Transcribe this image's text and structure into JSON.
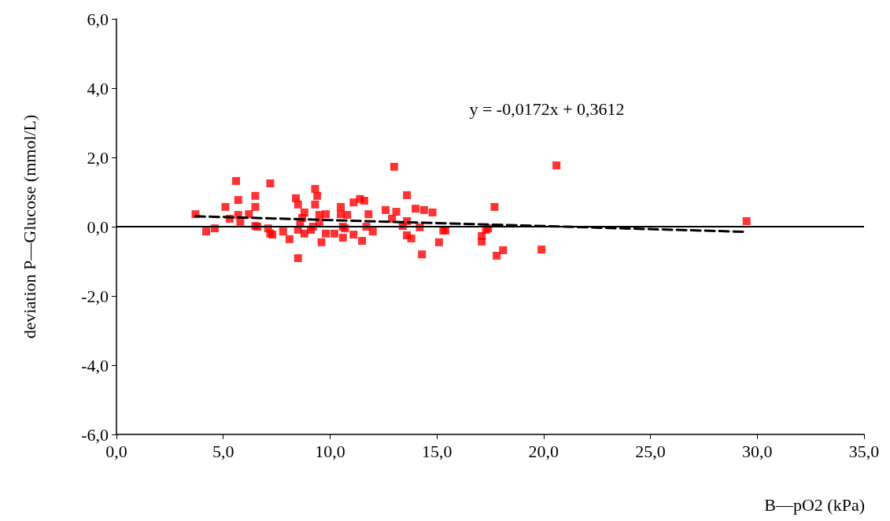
{
  "chart_data": {
    "type": "scatter",
    "xlabel": "B—pO2 (kPa)",
    "ylabel": "deviation P—Glucose (mmol/L)",
    "annotations": [
      "y = -0,0172x + 0,3612"
    ],
    "xlim": [
      0,
      35
    ],
    "ylim": [
      -6,
      6
    ],
    "xticks": [
      {
        "value": 0,
        "label": "0,0"
      },
      {
        "value": 5,
        "label": "5,0"
      },
      {
        "value": 10,
        "label": "10,0"
      },
      {
        "value": 15,
        "label": "15,0"
      },
      {
        "value": 20,
        "label": "20,0"
      },
      {
        "value": 25,
        "label": "25,0"
      },
      {
        "value": 30,
        "label": "30,0"
      },
      {
        "value": 35,
        "label": "35,0"
      }
    ],
    "yticks": [
      {
        "value": -6,
        "label": "-6,0"
      },
      {
        "value": -4,
        "label": "-4,0"
      },
      {
        "value": -2,
        "label": "-2,0"
      },
      {
        "value": 0,
        "label": "0,0"
      },
      {
        "value": 2,
        "label": "2,0"
      },
      {
        "value": 4,
        "label": "4,0"
      },
      {
        "value": 6,
        "label": "6,0"
      }
    ],
    "grid": false,
    "ref_lines": [
      {
        "axis": "y",
        "value": 0,
        "color": "#000000",
        "line_style": "solid"
      }
    ],
    "series": [
      {
        "color": "#ff0000",
        "marker": "square",
        "x": [
          3.7,
          4.2,
          4.6,
          5.6,
          5.1,
          5.7,
          5.3,
          5.7,
          5.8,
          6.2,
          6.5,
          6.5,
          6.5,
          6.6,
          7.2,
          7.1,
          7.2,
          7.3,
          7.8,
          8.1,
          8.4,
          8.5,
          8.5,
          8.6,
          8.7,
          8.5,
          8.8,
          8.8,
          9.1,
          9.3,
          9.4,
          9.3,
          9.2,
          9.5,
          9.8,
          9.5,
          9.8,
          9.6,
          10.2,
          10.5,
          10.5,
          10.8,
          10.6,
          10.7,
          10.6,
          11.1,
          11.1,
          11.4,
          11.6,
          11.5,
          11.8,
          11.7,
          12.0,
          13.0,
          12.6,
          13.1,
          12.9,
          13.6,
          14.0,
          14.4,
          14.8,
          13.6,
          13.4,
          14.2,
          13.6,
          13.8,
          14.3,
          15.3,
          15.4,
          15.1,
          17.7,
          17.4,
          17.3,
          17.1,
          17.1,
          18.1,
          17.8,
          19.9,
          20.6,
          29.5
        ],
        "values": [
          0.36,
          -0.14,
          -0.05,
          1.32,
          0.57,
          0.77,
          0.23,
          0.34,
          0.14,
          0.36,
          0.89,
          0.57,
          0.02,
          0.0,
          1.25,
          -0.05,
          -0.2,
          -0.23,
          -0.14,
          -0.36,
          0.82,
          0.64,
          -0.91,
          0.11,
          0.25,
          -0.09,
          0.41,
          -0.2,
          -0.09,
          1.09,
          0.89,
          0.64,
          0.0,
          0.34,
          0.36,
          0.11,
          -0.2,
          -0.45,
          -0.2,
          0.57,
          0.36,
          0.34,
          0.0,
          -0.05,
          -0.32,
          0.7,
          -0.23,
          0.8,
          0.75,
          -0.41,
          0.36,
          0.0,
          -0.14,
          1.73,
          0.48,
          0.43,
          0.23,
          0.91,
          0.52,
          0.48,
          0.41,
          0.16,
          0.02,
          -0.02,
          -0.25,
          -0.34,
          -0.8,
          -0.11,
          -0.11,
          -0.45,
          0.57,
          -0.05,
          -0.09,
          -0.27,
          -0.43,
          -0.68,
          -0.84,
          -0.66,
          1.77,
          0.16
        ]
      },
      {
        "type": "line",
        "color": "#000000",
        "line_style": "dashed",
        "marker": "none",
        "x": [
          3.7,
          29.5
        ],
        "values": [
          0.3,
          -0.15
        ]
      }
    ]
  }
}
